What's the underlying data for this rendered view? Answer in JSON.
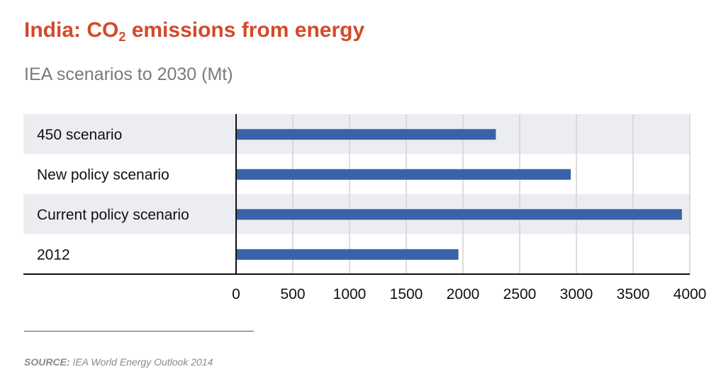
{
  "title": {
    "prefix": "India: CO",
    "subscript": "2",
    "suffix": " emissions from energy"
  },
  "subtitle": "IEA scenarios to 2030 (Mt)",
  "source": {
    "label": "SOURCE:",
    "text": " IEA World Energy Outlook 2014"
  },
  "colors": {
    "title": "#d24a2b",
    "bar": "#3a62a8",
    "band": "#ecedf0",
    "grid": "#d4d4d4",
    "axis": "#111111"
  },
  "chart_data": {
    "type": "bar",
    "orientation": "horizontal",
    "categories": [
      "450 scenario",
      "New policy scenario",
      "Current policy scenario",
      "2012"
    ],
    "values": [
      2290,
      2950,
      3930,
      1960
    ],
    "xlim": [
      0,
      4000
    ],
    "xticks": [
      0,
      500,
      1000,
      1500,
      2000,
      2500,
      3000,
      3500,
      4000
    ],
    "xlabel": "",
    "ylabel": "",
    "grid": true,
    "legend": "none"
  }
}
